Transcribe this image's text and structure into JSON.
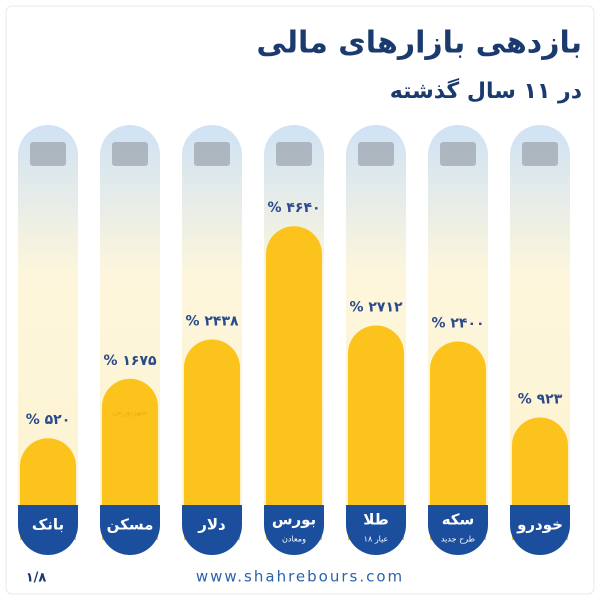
{
  "chart_data": {
    "type": "bar",
    "title": "بازدهی بازارهای مالی",
    "subtitle": "در ۱۱ سال گذشته",
    "categories": [
      "بانک",
      "مسکن",
      "دلار",
      "بورس",
      "طلا",
      "سکه",
      "خودرو"
    ],
    "category_notes": [
      null,
      null,
      null,
      "ومعادن",
      "۱۸ عیار",
      "طرح جدید",
      null
    ],
    "values": [
      520,
      1675,
      2438,
      4640,
      2712,
      2400,
      923
    ],
    "value_labels": [
      "% ۵۲۰",
      "% ۱۶۷۵",
      "% ۲۴۳۸",
      "% ۴۶۴۰",
      "% ۲۷۱۲",
      "% ۲۴۰۰",
      "% ۹۲۳"
    ],
    "color": "#fbc31b",
    "watermark": "شهربورس",
    "footer": "www.shahrebours.com",
    "page": "۱/۸"
  }
}
